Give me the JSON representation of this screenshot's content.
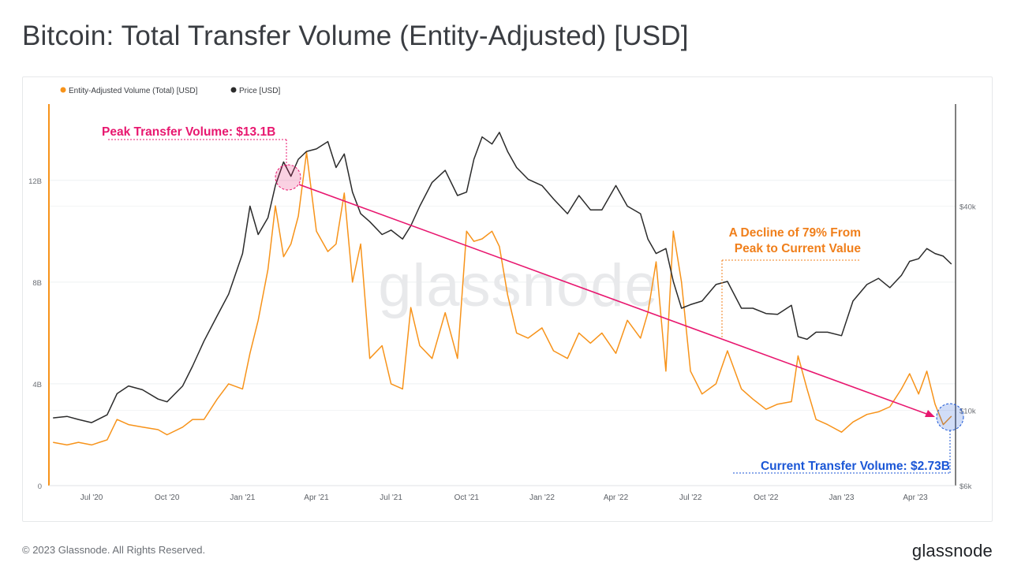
{
  "page": {
    "title": "Bitcoin: Total Transfer Volume (Entity-Adjusted) [USD]",
    "copyright": "© 2023 Glassnode. All Rights Reserved.",
    "brand": "glassnode",
    "watermark": "glassnode"
  },
  "colors": {
    "volume": "#f7931a",
    "price": "#2b2b2b",
    "peak": "#e8176f",
    "decline": "#f07f1b",
    "current": "#1a56d6"
  },
  "annotations": {
    "peak_label": "Peak Transfer Volume: $13.1B",
    "decline_label_line1": "A Decline of 79% From",
    "decline_label_line2": "Peak to Current Value",
    "current_label": "Current Transfer Volume: $2.73B"
  },
  "chart_data": {
    "type": "line",
    "legend": [
      "Entity-Adjusted Volume (Total) [USD]",
      "Price [USD]"
    ],
    "legend_position": "top-left",
    "x_ticks": [
      "Jul '20",
      "Oct '20",
      "Jan '21",
      "Apr '21",
      "Jul '21",
      "Oct '21",
      "Jan '22",
      "Apr '22",
      "Jul '22",
      "Oct '22",
      "Jan '23",
      "Apr '23"
    ],
    "y_left": {
      "ticks": [
        "0",
        "4B",
        "8B",
        "12B"
      ],
      "range": [
        0,
        15000000000
      ]
    },
    "y_right": {
      "ticks": [
        "$6k",
        "$10k",
        "$40k"
      ],
      "scale": "log",
      "range": [
        6000,
        80000
      ]
    },
    "grid": true,
    "series": [
      {
        "name": "Entity-Adjusted Volume (Total) [USD]",
        "axis": "left",
        "x": [
          "2020-05-15",
          "2020-06-01",
          "2020-06-15",
          "2020-07-01",
          "2020-07-20",
          "2020-08-01",
          "2020-08-15",
          "2020-09-01",
          "2020-09-20",
          "2020-10-01",
          "2020-10-20",
          "2020-11-01",
          "2020-11-15",
          "2020-12-01",
          "2020-12-15",
          "2021-01-01",
          "2021-01-10",
          "2021-01-20",
          "2021-02-01",
          "2021-02-10",
          "2021-02-20",
          "2021-03-01",
          "2021-03-10",
          "2021-03-20",
          "2021-04-01",
          "2021-04-15",
          "2021-04-25",
          "2021-05-05",
          "2021-05-15",
          "2021-05-25",
          "2021-06-05",
          "2021-06-20",
          "2021-07-01",
          "2021-07-15",
          "2021-07-25",
          "2021-08-05",
          "2021-08-20",
          "2021-09-05",
          "2021-09-20",
          "2021-10-01",
          "2021-10-10",
          "2021-10-20",
          "2021-11-01",
          "2021-11-10",
          "2021-11-20",
          "2021-12-01",
          "2021-12-15",
          "2022-01-01",
          "2022-01-15",
          "2022-02-01",
          "2022-02-15",
          "2022-03-01",
          "2022-03-15",
          "2022-04-01",
          "2022-04-15",
          "2022-05-01",
          "2022-05-10",
          "2022-05-20",
          "2022-06-01",
          "2022-06-10",
          "2022-06-20",
          "2022-07-01",
          "2022-07-15",
          "2022-08-01",
          "2022-08-15",
          "2022-09-01",
          "2022-09-15",
          "2022-10-01",
          "2022-10-15",
          "2022-11-01",
          "2022-11-09",
          "2022-11-20",
          "2022-12-01",
          "2022-12-15",
          "2023-01-01",
          "2023-01-15",
          "2023-02-01",
          "2023-02-15",
          "2023-03-01",
          "2023-03-15",
          "2023-03-25",
          "2023-04-05",
          "2023-04-15",
          "2023-04-25",
          "2023-05-05",
          "2023-05-15"
        ],
        "values": [
          1.7,
          1.6,
          1.7,
          1.6,
          1.8,
          2.6,
          2.4,
          2.3,
          2.2,
          2.0,
          2.3,
          2.6,
          2.6,
          3.4,
          4.0,
          3.8,
          5.2,
          6.5,
          8.5,
          11.0,
          9.0,
          9.5,
          10.6,
          13.1,
          10.0,
          9.2,
          9.5,
          11.5,
          8.0,
          9.5,
          5.0,
          5.5,
          4.0,
          3.8,
          7.0,
          5.5,
          5.0,
          6.8,
          5.0,
          10.0,
          9.6,
          9.7,
          10.0,
          9.4,
          7.5,
          6.0,
          5.8,
          6.2,
          5.3,
          5.0,
          6.0,
          5.6,
          6.0,
          5.2,
          6.5,
          5.8,
          6.8,
          8.8,
          4.5,
          10.0,
          8.0,
          4.5,
          3.6,
          4.0,
          5.3,
          3.8,
          3.4,
          3.0,
          3.2,
          3.3,
          5.1,
          3.8,
          2.6,
          2.4,
          2.1,
          2.5,
          2.8,
          2.9,
          3.1,
          3.8,
          4.4,
          3.6,
          4.5,
          3.2,
          2.4,
          2.73
        ]
      },
      {
        "name": "Price [USD]",
        "axis": "right",
        "x": [
          "2020-05-15",
          "2020-06-01",
          "2020-06-15",
          "2020-07-01",
          "2020-07-20",
          "2020-08-01",
          "2020-08-15",
          "2020-09-01",
          "2020-09-20",
          "2020-10-01",
          "2020-10-20",
          "2020-11-01",
          "2020-11-15",
          "2020-12-01",
          "2020-12-15",
          "2021-01-01",
          "2021-01-10",
          "2021-01-20",
          "2021-02-01",
          "2021-02-10",
          "2021-02-20",
          "2021-03-01",
          "2021-03-10",
          "2021-03-20",
          "2021-04-01",
          "2021-04-15",
          "2021-04-25",
          "2021-05-05",
          "2021-05-15",
          "2021-05-25",
          "2021-06-05",
          "2021-06-20",
          "2021-07-01",
          "2021-07-15",
          "2021-07-25",
          "2021-08-05",
          "2021-08-20",
          "2021-09-05",
          "2021-09-20",
          "2021-10-01",
          "2021-10-10",
          "2021-10-20",
          "2021-11-01",
          "2021-11-10",
          "2021-11-20",
          "2021-12-01",
          "2021-12-15",
          "2022-01-01",
          "2022-01-15",
          "2022-02-01",
          "2022-02-15",
          "2022-03-01",
          "2022-03-15",
          "2022-04-01",
          "2022-04-15",
          "2022-05-01",
          "2022-05-10",
          "2022-05-20",
          "2022-06-01",
          "2022-06-10",
          "2022-06-20",
          "2022-07-01",
          "2022-07-15",
          "2022-08-01",
          "2022-08-15",
          "2022-09-01",
          "2022-09-15",
          "2022-10-01",
          "2022-10-15",
          "2022-11-01",
          "2022-11-09",
          "2022-11-20",
          "2022-12-01",
          "2022-12-15",
          "2023-01-01",
          "2023-01-15",
          "2023-02-01",
          "2023-02-15",
          "2023-03-01",
          "2023-03-15",
          "2023-03-25",
          "2023-04-05",
          "2023-04-15",
          "2023-04-25",
          "2023-05-05",
          "2023-05-15"
        ],
        "values": [
          9500,
          9600,
          9400,
          9200,
          9700,
          11200,
          11800,
          11500,
          10800,
          10600,
          11800,
          13500,
          16000,
          19000,
          22000,
          29000,
          40000,
          33000,
          37000,
          46000,
          54000,
          49000,
          55000,
          58000,
          59000,
          62000,
          52000,
          57000,
          44000,
          38000,
          36000,
          33000,
          34000,
          32000,
          35000,
          40000,
          47000,
          51000,
          43000,
          44000,
          55000,
          64000,
          61000,
          66000,
          58000,
          52000,
          48000,
          46000,
          42000,
          38000,
          43000,
          39000,
          39000,
          46000,
          40000,
          38000,
          32000,
          29000,
          30000,
          24000,
          20000,
          20500,
          21000,
          23500,
          24000,
          20000,
          20000,
          19300,
          19200,
          20400,
          16500,
          16200,
          17000,
          17000,
          16600,
          21000,
          23500,
          24500,
          23000,
          25000,
          27500,
          28000,
          30000,
          29000,
          28500,
          27000
        ]
      }
    ]
  }
}
